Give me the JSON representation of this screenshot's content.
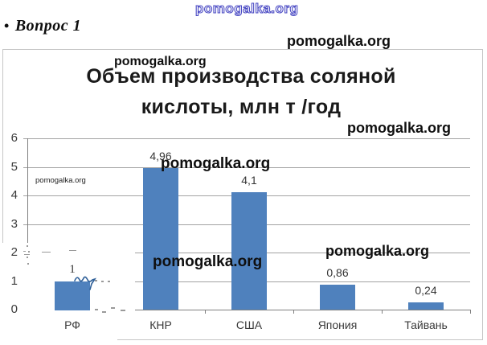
{
  "heading": {
    "bullet": "•",
    "text": "Вопрос 1"
  },
  "watermarks": [
    "pomogalka.org",
    "pomogalka.org",
    "pomogalka.org",
    "pomogalka.org",
    "pomogalka.org",
    "pomogalka.org",
    "pomogalka.org",
    "pomogalka.org"
  ],
  "chart": {
    "title_line1": "Объем производства соляной",
    "title_line2": "кислоты, млн т /год"
  },
  "chart_data": {
    "type": "bar",
    "title": "Объем производства соляной кислоты, млн т /год",
    "categories": [
      "РФ",
      "КНР",
      "США",
      "Япония",
      "Тайвань"
    ],
    "values": [
      1,
      4.96,
      4.1,
      0.86,
      0.24
    ],
    "value_labels": [
      "1",
      "4,96",
      "4,1",
      "0,86",
      "0,24"
    ],
    "ylabel": "",
    "xlabel": "",
    "ylim": [
      0,
      6
    ],
    "yticks": [
      0,
      1,
      2,
      3,
      4,
      5,
      6
    ],
    "grid": true,
    "legend": false,
    "bar_color": "#4f81bd",
    "gridline_color": "#a3a3a3",
    "axis_color": "#808080"
  }
}
